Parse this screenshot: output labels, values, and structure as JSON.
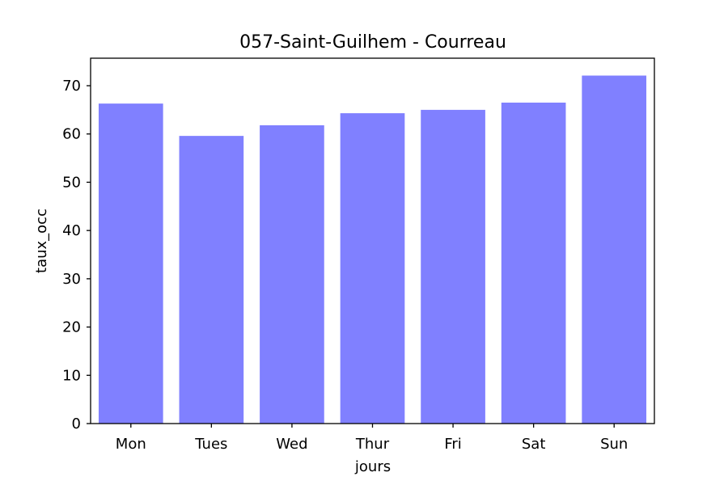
{
  "chart_data": {
    "type": "bar",
    "title": "057-Saint-Guilhem - Courreau",
    "xlabel": "jours",
    "ylabel": "taux_occ",
    "categories": [
      "Mon",
      "Tues",
      "Wed",
      "Thur",
      "Fri",
      "Sat",
      "Sun"
    ],
    "values": [
      66.3,
      59.6,
      61.8,
      64.3,
      65.0,
      66.5,
      72.1
    ],
    "ylim": [
      0,
      75.7
    ],
    "yticks": [
      0,
      10,
      20,
      30,
      40,
      50,
      60,
      70
    ],
    "grid": false,
    "legend": "none",
    "bar_color": "#8080ff"
  }
}
